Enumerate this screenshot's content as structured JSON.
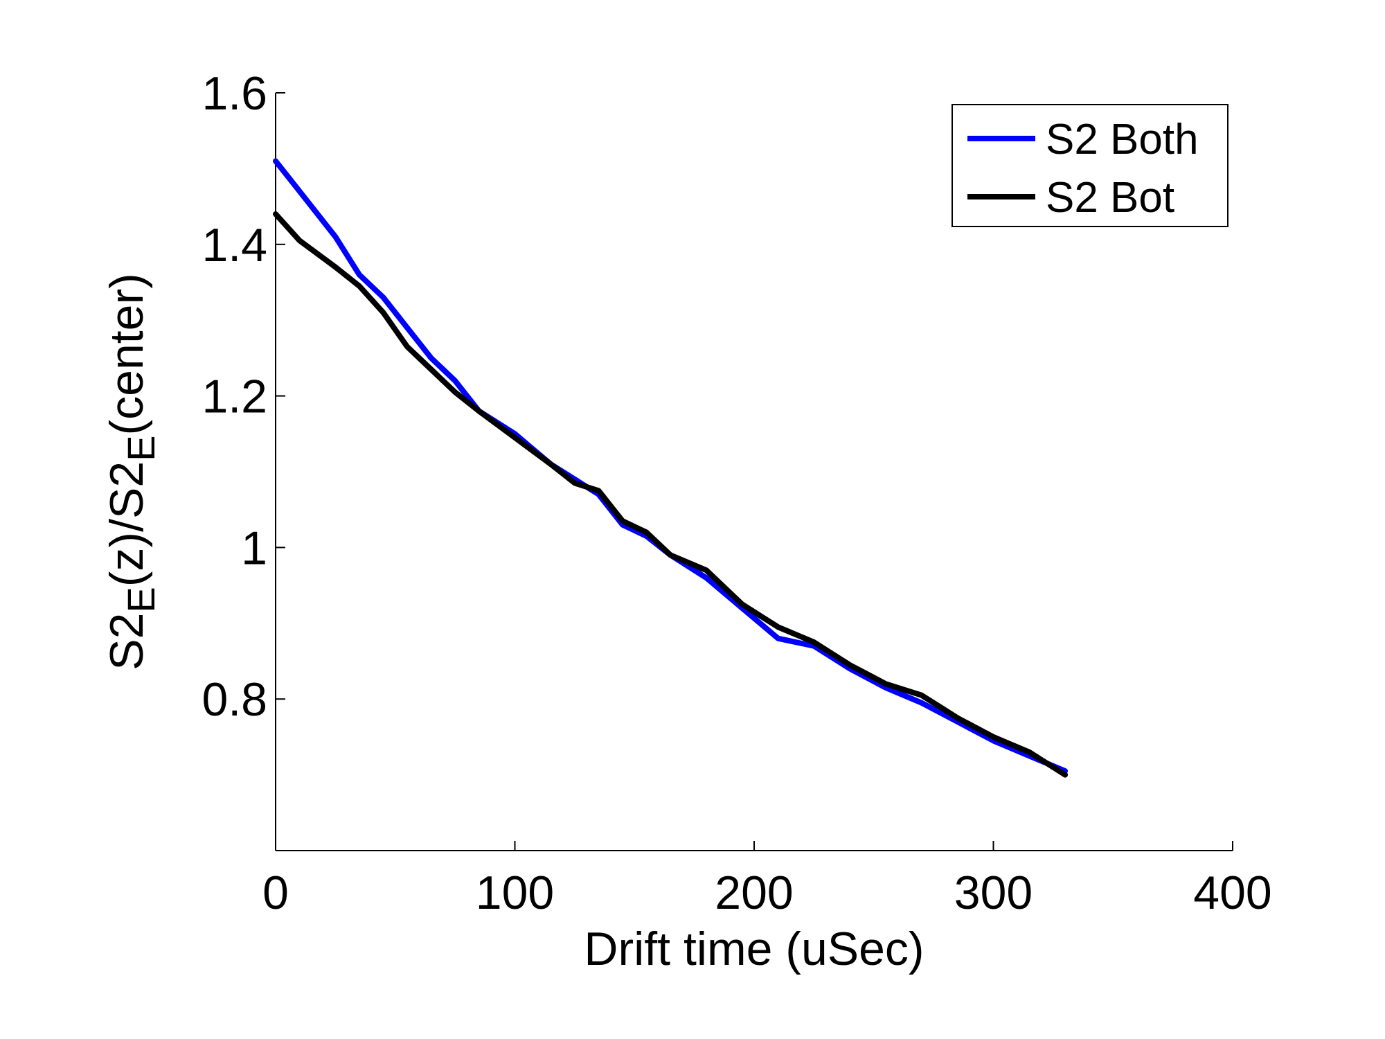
{
  "chart_data": {
    "type": "line",
    "title": "",
    "xlabel": "Drift time (uSec)",
    "ylabel": {
      "parts": [
        {
          "text": "S2",
          "sub": false
        },
        {
          "text": "E",
          "sub": true
        },
        {
          "text": "(z)/S2",
          "sub": false
        },
        {
          "text": "E",
          "sub": true
        },
        {
          "text": "(center)",
          "sub": false
        }
      ]
    },
    "xlim": [
      0,
      400
    ],
    "ylim": [
      0.6,
      1.6
    ],
    "xticks": [
      0,
      100,
      200,
      300,
      400
    ],
    "xtick_labels": [
      "0",
      "100",
      "200",
      "300",
      "400"
    ],
    "yticks": [
      0.8,
      1.0,
      1.2,
      1.4,
      1.6
    ],
    "ytick_labels": [
      "0.8",
      "1",
      "1.2",
      "1.4",
      "1.6"
    ],
    "grid": false,
    "legend_position": "top-right",
    "series": [
      {
        "name": "S2 Both",
        "color": "#0000ff",
        "x": [
          0,
          10,
          25,
          35,
          45,
          55,
          65,
          75,
          85,
          100,
          115,
          125,
          135,
          145,
          155,
          165,
          180,
          195,
          210,
          225,
          240,
          255,
          270,
          285,
          300,
          315,
          330
        ],
        "y": [
          1.51,
          1.47,
          1.41,
          1.36,
          1.33,
          1.29,
          1.25,
          1.22,
          1.18,
          1.15,
          1.11,
          1.09,
          1.07,
          1.03,
          1.015,
          0.99,
          0.96,
          0.92,
          0.88,
          0.87,
          0.84,
          0.815,
          0.795,
          0.77,
          0.745,
          0.725,
          0.705
        ]
      },
      {
        "name": "S2 Bot",
        "color": "#000000",
        "x": [
          0,
          10,
          25,
          35,
          45,
          55,
          65,
          75,
          85,
          100,
          115,
          125,
          135,
          145,
          155,
          165,
          180,
          195,
          210,
          225,
          240,
          255,
          270,
          285,
          300,
          315,
          330
        ],
        "y": [
          1.44,
          1.405,
          1.37,
          1.345,
          1.31,
          1.265,
          1.235,
          1.205,
          1.18,
          1.145,
          1.11,
          1.085,
          1.075,
          1.035,
          1.02,
          0.99,
          0.97,
          0.925,
          0.895,
          0.875,
          0.845,
          0.82,
          0.805,
          0.775,
          0.75,
          0.73,
          0.7
        ]
      }
    ]
  }
}
